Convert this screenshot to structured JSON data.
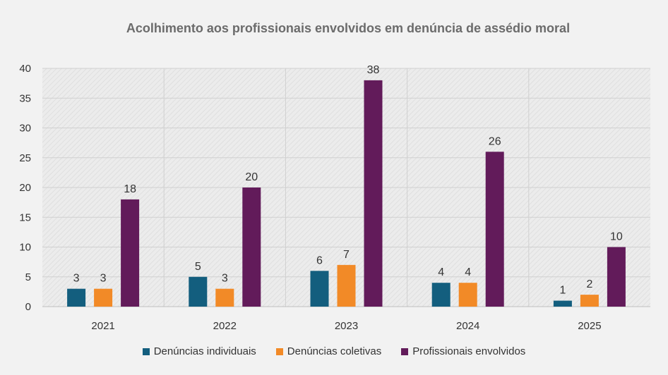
{
  "chart_data": {
    "type": "bar",
    "title": "Acolhimento aos profissionais envolvidos em denúncia de assédio moral",
    "categories": [
      "2021",
      "2022",
      "2023",
      "2024",
      "2025"
    ],
    "series": [
      {
        "name": "Denúncias individuais",
        "values": [
          3,
          5,
          6,
          4,
          1
        ],
        "color": "#135e7e"
      },
      {
        "name": "Denúncias coletivas",
        "values": [
          3,
          3,
          7,
          4,
          2
        ],
        "color": "#f28a27"
      },
      {
        "name": "Profissionais envolvidos",
        "values": [
          18,
          20,
          38,
          26,
          10
        ],
        "color": "#621b5a"
      }
    ],
    "ylim": [
      0,
      40
    ],
    "yticks": [
      0,
      5,
      10,
      15,
      20,
      25,
      30,
      35,
      40
    ],
    "grid": true,
    "legend_position": "bottom",
    "data_labels": true
  }
}
